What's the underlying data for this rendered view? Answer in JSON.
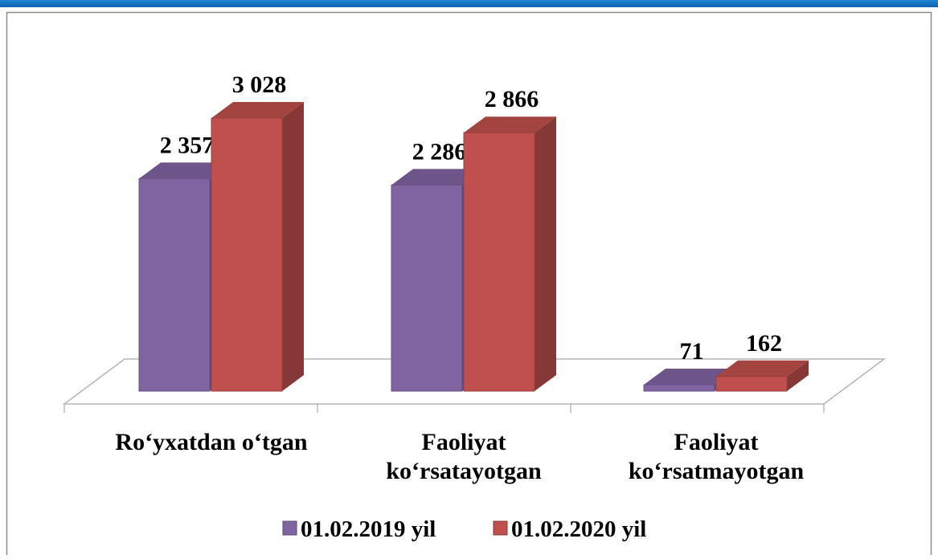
{
  "chart_data": {
    "type": "bar3d",
    "categories": [
      [
        "Ro‘yxatdan o‘tgan"
      ],
      [
        "Faoliyat",
        "ko‘rsatayotgan"
      ],
      [
        "Faoliyat",
        "ko‘rsatmayotgan"
      ]
    ],
    "series": [
      {
        "name": "01.02.2019 yil",
        "color": "#8064a2",
        "values": [
          2357,
          2286,
          71
        ],
        "value_labels": [
          "2 357",
          "2 286",
          "71"
        ]
      },
      {
        "name": "01.02.2020 yil",
        "color": "#c0504d",
        "values": [
          3028,
          2866,
          162
        ],
        "value_labels": [
          "3 028",
          "2 866",
          "162"
        ]
      }
    ],
    "legend": "bottom"
  }
}
